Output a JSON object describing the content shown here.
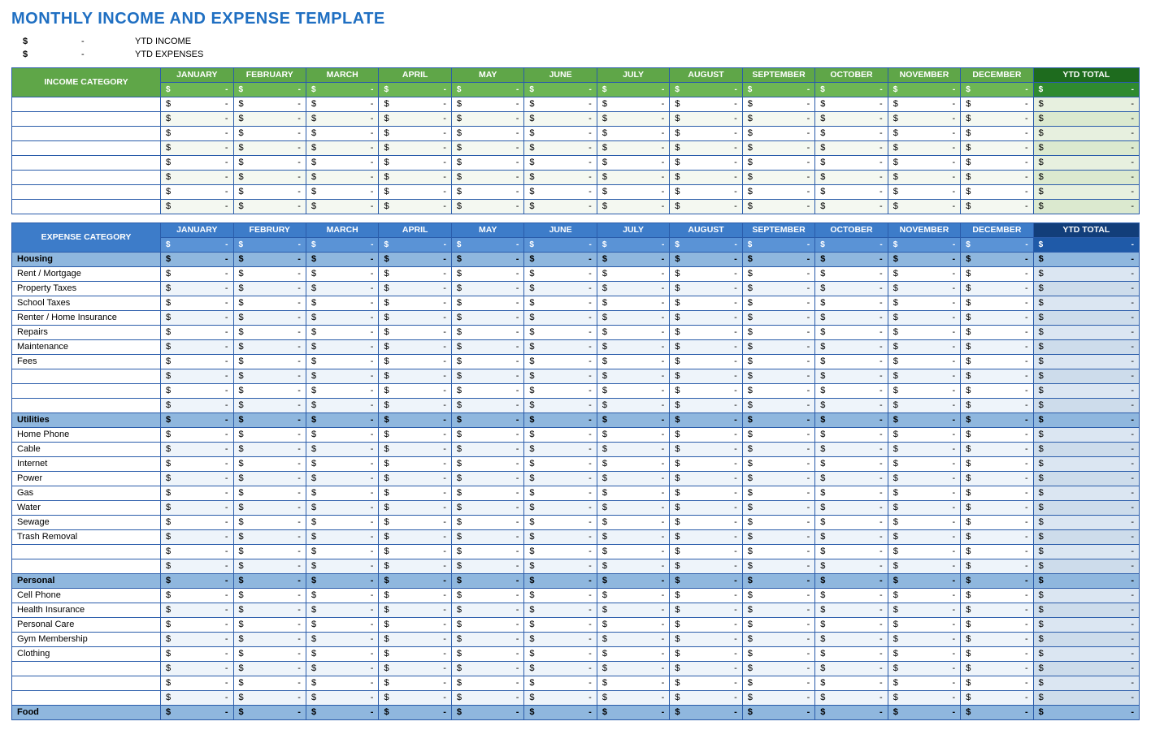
{
  "title": "MONTHLY INCOME AND EXPENSE TEMPLATE",
  "title_color": "#1f6fc2",
  "border_color": "#2a5caa",
  "currency_symbol": "$",
  "empty_value": "-",
  "summary": [
    {
      "label": "YTD INCOME"
    },
    {
      "label": "YTD EXPENSES"
    }
  ],
  "months": [
    "JANUARY",
    "FEBRUARY",
    "MARCH",
    "APRIL",
    "MAY",
    "JUNE",
    "JULY",
    "AUGUST",
    "SEPTEMBER",
    "OCTOBER",
    "NOVEMBER",
    "DECEMBER"
  ],
  "months_expense": [
    "JANUARY",
    "FEBRURY",
    "MARCH",
    "APRIL",
    "MAY",
    "JUNE",
    "JULY",
    "AUGUST",
    "SEPTEMBER",
    "OCTOBER",
    "NOVEMBER",
    "DECEMBER"
  ],
  "ytd_label": "YTD TOTAL",
  "income": {
    "header_label": "INCOME CATEGORY",
    "header_bg": "#5fa648",
    "subheader_bg": "#6db654",
    "ytd_header_bg": "#1e6b1e",
    "ytd_sub_bg": "#2f8a2f",
    "ytd_cell_bg": "#e7f0df",
    "ytd_cell_bg_alt": "#dbe9cf",
    "row_bg": "#ffffff",
    "row_bg_alt": "#f4f8f1",
    "rows": [
      "",
      "",
      "",
      "",
      "",
      "",
      "",
      ""
    ]
  },
  "expense": {
    "header_label": "EXPENSE CATEGORY",
    "header_bg": "#3d7cc9",
    "subheader_bg": "#5a93d6",
    "ytd_header_bg": "#123e7a",
    "ytd_sub_bg": "#1f5aa8",
    "ytd_cell_bg": "#dbe6f2",
    "ytd_cell_bg_alt": "#cddceb",
    "section_bg": "#8fb7de",
    "row_bg": "#ffffff",
    "row_bg_alt": "#eef4fa",
    "sections": [
      {
        "label": "Housing",
        "rows": [
          "Rent / Mortgage",
          "Property Taxes",
          "School Taxes",
          "Renter / Home Insurance",
          "Repairs",
          "Maintenance",
          "Fees",
          "",
          "",
          ""
        ]
      },
      {
        "label": "Utilities",
        "rows": [
          "Home Phone",
          "Cable",
          "Internet",
          "Power",
          "Gas",
          "Water",
          "Sewage",
          "Trash Removal",
          "",
          ""
        ]
      },
      {
        "label": "Personal",
        "rows": [
          "Cell Phone",
          "Health Insurance",
          "Personal Care",
          "Gym Membership",
          "Clothing",
          "",
          "",
          ""
        ]
      },
      {
        "label": "Food",
        "rows": []
      }
    ]
  }
}
